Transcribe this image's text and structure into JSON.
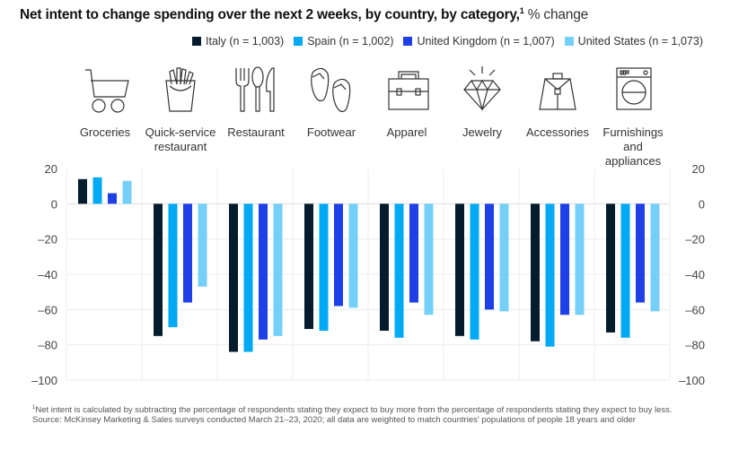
{
  "title": {
    "main": "Net intent to change spending over the next 2 weeks, by country, by category,",
    "footnote_marker": "1",
    "unit": " % change"
  },
  "footnotes": {
    "note_marker": "1",
    "note": "Net intent is calculated by subtracting the percentage of respondents stating they expect to buy more from the percentage of respondents stating they expect to buy less.",
    "source": "Source: McKinsey Marketing & Sales surveys conducted March 21–23, 2020; all data are weighted to match countries' populations of people 18 years and older"
  },
  "categories": [
    {
      "label": "Groceries",
      "icon": "shopping-cart-icon"
    },
    {
      "label": "Quick-service restaurant",
      "icon": "french-fries-icon"
    },
    {
      "label": "Restaurant",
      "icon": "cutlery-icon"
    },
    {
      "label": "Footwear",
      "icon": "flip-flops-icon"
    },
    {
      "label": "Apparel",
      "icon": "briefcase-icon"
    },
    {
      "label": "Jewelry",
      "icon": "diamond-icon"
    },
    {
      "label": "Accessories",
      "icon": "handbag-icon"
    },
    {
      "label": "Furnishings and appliances",
      "icon": "washing-machine-icon"
    }
  ],
  "chart_data": {
    "type": "bar",
    "title": "Net intent to change spending over the next 2 weeks, by country, by category, % change",
    "xlabel": "",
    "ylabel": "% change",
    "ylim": [
      -100,
      20
    ],
    "yticks": [
      20,
      0,
      -20,
      -40,
      -60,
      -80,
      -100
    ],
    "ytick_labels": [
      "20",
      "0",
      "–20",
      "–40",
      "–60",
      "–80",
      "–100"
    ],
    "grid": true,
    "legend_position": "top-right",
    "categories": [
      "Groceries",
      "Quick-service restaurant",
      "Restaurant",
      "Footwear",
      "Apparel",
      "Jewelry",
      "Accessories",
      "Furnishings and appliances"
    ],
    "series": [
      {
        "name": "Italy (n = 1,003)",
        "color": "#051c2c",
        "values": [
          14,
          -75,
          -84,
          -71,
          -72,
          -75,
          -78,
          -73
        ]
      },
      {
        "name": "Spain (n = 1,002)",
        "color": "#00a9f4",
        "values": [
          15,
          -70,
          -84,
          -72,
          -76,
          -77,
          -81,
          -76
        ]
      },
      {
        "name": "United Kingdom (n = 1,007)",
        "color": "#1f40e6",
        "values": [
          6,
          -56,
          -77,
          -58,
          -56,
          -60,
          -63,
          -56
        ]
      },
      {
        "name": "United States (n = 1,073)",
        "color": "#75d0f9",
        "values": [
          13,
          -47,
          -75,
          -59,
          -63,
          -61,
          -63,
          -61
        ]
      }
    ]
  }
}
